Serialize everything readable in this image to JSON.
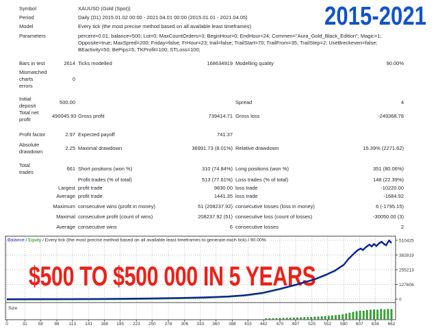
{
  "badge_years": {
    "text": "2015-2021",
    "color": "#1254c8"
  },
  "overlay": {
    "text": "$500 TO $500 000 IN 5 YEARS",
    "color": "#ee2018"
  },
  "report": {
    "rows": [
      {
        "c1": "Symbol",
        "full": "XAUUSD (Gold (Spot))"
      },
      {
        "c1": "Period",
        "full": "Daily (D1) 2015.01.02 00:00 - 2021.04.01 00:00 (2015.01.01 - 2021.04.05)"
      },
      {
        "c1": "Model",
        "full": "Every tick (the most precise method based on all available least timeframes)"
      },
      {
        "c1": "Parameters",
        "lines": [
          "percent=0.01; balance=500; Lot=0; MaxCountOrders=3; BeginHour=0; EndHour=24; Commen=\"Aura_Gold_Black_Edition\"; Magic=1;",
          "Opposite=true; MaxSpred=200; Friday=false; FrHour=23; trail=false; TrailStart=70; TrailFrom=35; TrailStep=2; UseBreckeven=false;",
          "BEactivity=50; BePips=5; TKProfit=100; STLoss=100;"
        ]
      },
      {
        "c1": "Bars in test",
        "c2": "2614",
        "c3": "Ticks modelled",
        "c4": "168634919",
        "c5": "Modelling quality",
        "c6": "90.00%"
      },
      {
        "c1": "Mismatched\ncharts\nerrors",
        "c2": "0"
      },
      {
        "c1": "Initial\ndeposit",
        "c2": "500.00",
        "c5": "Spread",
        "c6": "4"
      },
      {
        "c1": "Total net\nprofit",
        "c2": "490045.93",
        "c3": "Gross profit",
        "c4": "739414.71",
        "c5": "Gross loss",
        "c6": "-249368.78"
      },
      {
        "c1": "Profit factor",
        "c2": "2.97",
        "c3": "Expected payoff",
        "c4": "741.37"
      },
      {
        "c1": "Absolute\ndrawdown",
        "c2": "2.25",
        "c3": "Maximal drawdown",
        "c4": "36991.73 (8.01%)",
        "c5": "Relative drawdown",
        "c6": "15.39% (2271.62)"
      },
      {
        "c1": "Total\ntrades",
        "c2": "661",
        "c3": "Short positions (won %)",
        "c4": "310 (74.84%)",
        "c5": "Long positions (won %)",
        "c6": "351 (80.06%)"
      },
      {
        "c3": "Profit trades (% of total)",
        "c4": "513 (77.61%)",
        "c5": "Loss trades (% of total)",
        "c6": "148 (22.39%)"
      },
      {
        "c2": "Largest",
        "c3": "profit trade",
        "c4": "9830.00",
        "c5": "loss trade",
        "c6": "-10220.00"
      },
      {
        "c2": "Average",
        "c3": "profit trade",
        "c4": "1441.35",
        "c5": "loss trade",
        "c6": "-1684.92"
      },
      {
        "c2": "Maximum",
        "c3": "consecutive wins (profit in money)",
        "c4": "51 (208237.92)",
        "c5": "consecutive losses (loss in money)",
        "c6": "6 (-1795.15)"
      },
      {
        "c2": "Maximal",
        "c3": "consecutive profit (count of wins)",
        "c4": "208237.92 (51)",
        "c5": "consecutive loss (count of losses)",
        "c6": "-30050.00 (3)"
      },
      {
        "c2": "Average",
        "c3": "consecutive wins",
        "c4": "6",
        "c5": "consecutive losses",
        "c6": "2"
      }
    ]
  },
  "chart_data": {
    "type": "line",
    "title_parts": [
      {
        "text": "Balance",
        "color": "#2222cc"
      },
      {
        "text": " / ",
        "color": "#333333"
      },
      {
        "text": "Equity",
        "color": "#0a9000"
      },
      {
        "text": " / Every tick (the most precise method based on all available least timeframes to generate each tick) / 90.00%",
        "color": "#333333"
      }
    ],
    "x_ticks": [
      0,
      31,
      58,
      86,
      113,
      141,
      168,
      195,
      223,
      250,
      278,
      306,
      333,
      360,
      388,
      415,
      442,
      470,
      497,
      525,
      552,
      580,
      607,
      634,
      662
    ],
    "y_ticks": [
      0,
      127606,
      255213,
      382819,
      510425
    ],
    "x_max": 662,
    "y_max": 510425,
    "grid": true,
    "series": [
      {
        "name": "Balance",
        "color": "#1212b8"
      },
      {
        "name": "Equity",
        "color": "#0a9000"
      }
    ],
    "balance_points": [
      [
        0,
        500
      ],
      [
        50,
        900
      ],
      [
        100,
        1600
      ],
      [
        150,
        2600
      ],
      [
        200,
        4300
      ],
      [
        250,
        7000
      ],
      [
        300,
        11000
      ],
      [
        340,
        16000
      ],
      [
        380,
        24000
      ],
      [
        410,
        35000
      ],
      [
        440,
        55000
      ],
      [
        470,
        90000
      ],
      [
        500,
        130000
      ],
      [
        529,
        172000
      ],
      [
        548,
        210000
      ],
      [
        565,
        249000
      ],
      [
        580,
        300000
      ],
      [
        588,
        350000
      ],
      [
        596,
        390000
      ],
      [
        604,
        427000
      ],
      [
        609,
        440000
      ],
      [
        613,
        428000
      ],
      [
        618,
        452000
      ],
      [
        624,
        475000
      ],
      [
        628,
        458000
      ],
      [
        632,
        480000
      ],
      [
        636,
        462000
      ],
      [
        641,
        487000
      ],
      [
        645,
        499000
      ],
      [
        649,
        481000
      ],
      [
        653,
        469000
      ],
      [
        656,
        496000
      ],
      [
        658,
        510425
      ],
      [
        660,
        498000
      ],
      [
        662,
        490546
      ]
    ],
    "size_panel": {
      "label": "Size",
      "bar_color": "#2db42d",
      "bar_border": "#157015"
    }
  }
}
